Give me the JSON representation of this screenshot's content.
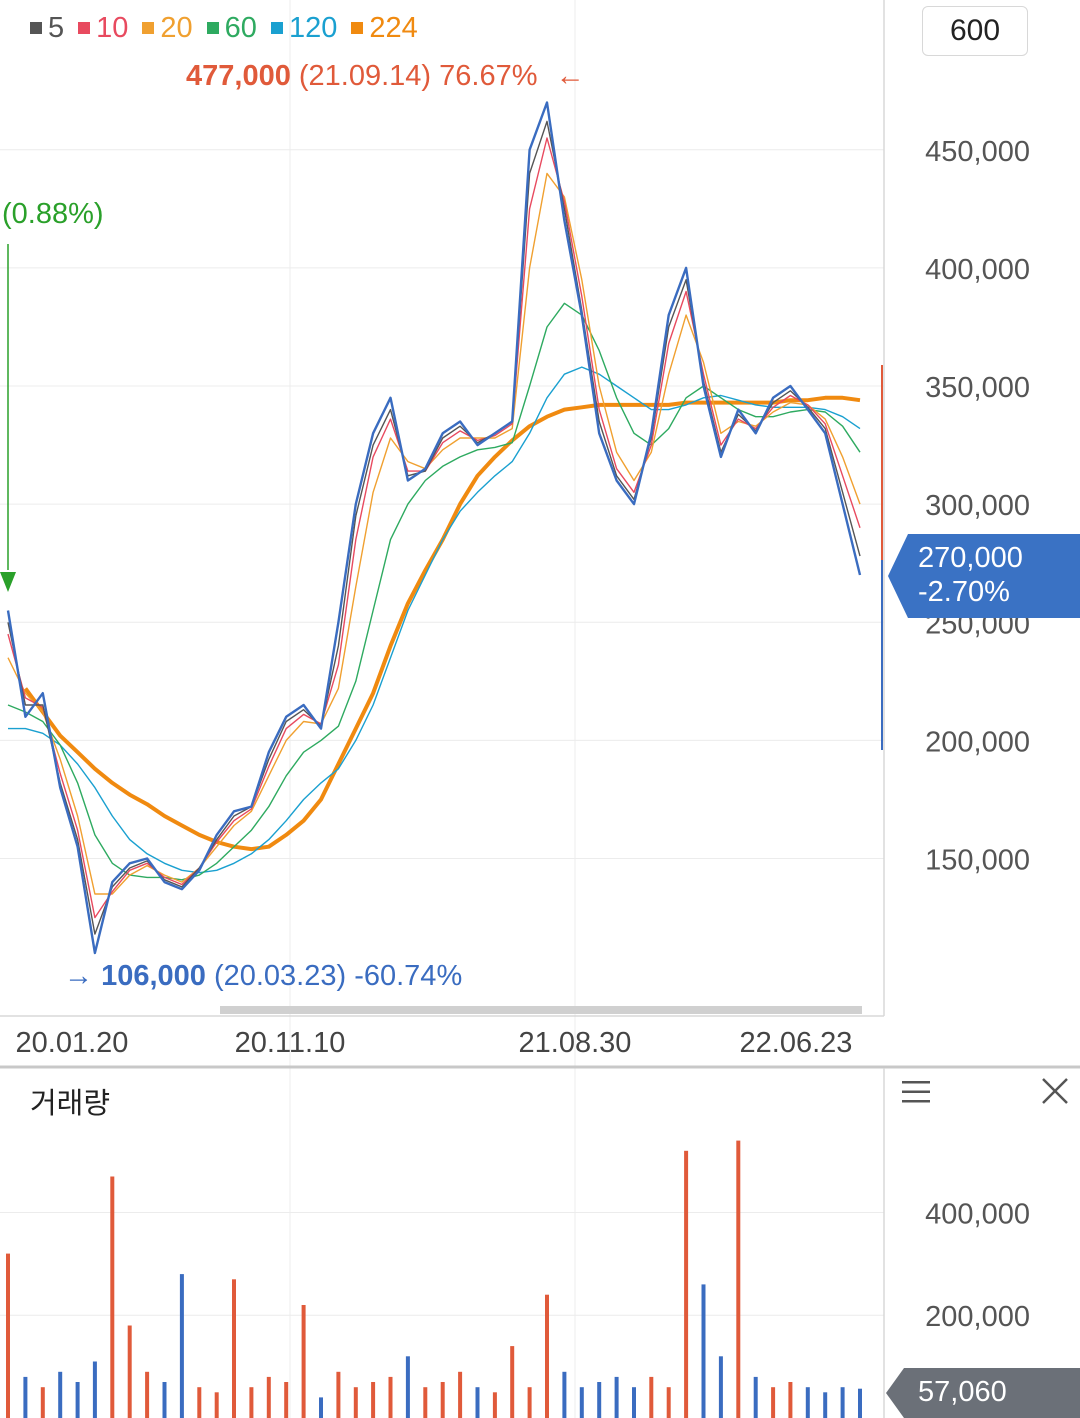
{
  "legend": [
    {
      "label": "5",
      "color": "#555555"
    },
    {
      "label": "10",
      "color": "#e84a5f"
    },
    {
      "label": "20",
      "color": "#f0a030"
    },
    {
      "label": "60",
      "color": "#2eaa60"
    },
    {
      "label": "120",
      "color": "#1aa0d0"
    },
    {
      "label": "224",
      "color": "#f08a10"
    }
  ],
  "zoom_value": "600",
  "annotations": {
    "high": {
      "value": "477,000",
      "detail": "(21.09.14) 76.67%",
      "arrow": "←"
    },
    "low": {
      "arrow": "→",
      "value": "106,000",
      "detail": "(20.03.23) -60.74%"
    },
    "start": {
      "text": "(0.88%)"
    }
  },
  "current_price": {
    "value": "270,000",
    "change": "-2.70%"
  },
  "volume_panel": {
    "title": "거래량",
    "current": "57,060"
  },
  "chart_data": {
    "type": "line",
    "price_axis": {
      "ticks": [
        150000,
        200000,
        250000,
        300000,
        350000,
        400000,
        450000
      ],
      "tick_labels": [
        "150,000",
        "200,000",
        "250,000",
        "300,000",
        "350,000",
        "400,000",
        "450,000"
      ],
      "ylim": [
        88000,
        488000
      ]
    },
    "x_tick_labels": [
      "20.01.20",
      "20.11.10",
      "21.08.30",
      "22.06.23"
    ],
    "price_series": [
      {
        "name": "price",
        "values": [
          255000,
          210000,
          220000,
          180000,
          155000,
          110000,
          140000,
          148000,
          150000,
          140000,
          137000,
          145000,
          160000,
          170000,
          172000,
          195000,
          210000,
          215000,
          205000,
          250000,
          300000,
          330000,
          345000,
          310000,
          315000,
          330000,
          335000,
          325000,
          330000,
          335000,
          450000,
          470000,
          420000,
          380000,
          330000,
          310000,
          300000,
          330000,
          380000,
          400000,
          350000,
          320000,
          340000,
          330000,
          345000,
          350000,
          340000,
          330000,
          300000,
          270000
        ]
      },
      {
        "name": "5",
        "values": [
          250000,
          215000,
          215000,
          182000,
          158000,
          118000,
          138000,
          146000,
          149000,
          141000,
          138000,
          146000,
          158000,
          168000,
          172000,
          192000,
          208000,
          213000,
          206000,
          240000,
          295000,
          325000,
          340000,
          312000,
          314000,
          328000,
          333000,
          326000,
          330000,
          335000,
          440000,
          462000,
          425000,
          382000,
          335000,
          312000,
          302000,
          328000,
          375000,
          395000,
          352000,
          322000,
          338000,
          331000,
          343000,
          348000,
          341000,
          332000,
          305000,
          278000
        ]
      },
      {
        "name": "10",
        "values": [
          245000,
          218000,
          214000,
          186000,
          162000,
          125000,
          136000,
          145000,
          148000,
          142000,
          139000,
          146000,
          157000,
          166000,
          171000,
          189000,
          205000,
          211000,
          207000,
          232000,
          285000,
          320000,
          336000,
          314000,
          314000,
          326000,
          331000,
          327000,
          329000,
          334000,
          425000,
          455000,
          428000,
          388000,
          340000,
          315000,
          305000,
          325000,
          368000,
          390000,
          355000,
          325000,
          336000,
          332000,
          341000,
          346000,
          342000,
          334000,
          312000,
          290000
        ]
      },
      {
        "name": "20",
        "values": [
          235000,
          220000,
          212000,
          192000,
          168000,
          135000,
          135000,
          143000,
          147000,
          143000,
          140000,
          146000,
          155000,
          164000,
          170000,
          185000,
          200000,
          208000,
          207000,
          222000,
          265000,
          305000,
          328000,
          318000,
          315000,
          323000,
          328000,
          328000,
          328000,
          332000,
          400000,
          440000,
          430000,
          395000,
          350000,
          322000,
          310000,
          322000,
          355000,
          380000,
          360000,
          330000,
          335000,
          333000,
          339000,
          343000,
          342000,
          336000,
          320000,
          300000
        ]
      },
      {
        "name": "60",
        "values": [
          215000,
          212000,
          208000,
          198000,
          182000,
          160000,
          148000,
          143000,
          142000,
          142000,
          141000,
          143000,
          148000,
          155000,
          162000,
          172000,
          185000,
          195000,
          200000,
          206000,
          225000,
          255000,
          285000,
          300000,
          310000,
          316000,
          320000,
          323000,
          324000,
          326000,
          350000,
          375000,
          385000,
          380000,
          365000,
          345000,
          330000,
          325000,
          332000,
          345000,
          350000,
          345000,
          340000,
          337000,
          337000,
          339000,
          340000,
          339000,
          333000,
          322000
        ]
      },
      {
        "name": "120",
        "values": [
          205000,
          205000,
          203000,
          198000,
          190000,
          180000,
          168000,
          158000,
          152000,
          148000,
          145000,
          144000,
          145000,
          148000,
          152000,
          158000,
          166000,
          175000,
          182000,
          188000,
          200000,
          215000,
          235000,
          255000,
          270000,
          285000,
          297000,
          305000,
          312000,
          318000,
          330000,
          345000,
          355000,
          358000,
          355000,
          350000,
          345000,
          340000,
          340000,
          342000,
          345000,
          346000,
          344000,
          342000,
          341000,
          341000,
          341000,
          340000,
          337000,
          332000
        ]
      },
      {
        "name": "224",
        "values": [
          null,
          222000,
          212000,
          202000,
          195000,
          188000,
          182000,
          177000,
          173000,
          168000,
          164000,
          160000,
          157000,
          155000,
          154000,
          155000,
          160000,
          166000,
          175000,
          190000,
          205000,
          220000,
          240000,
          258000,
          272000,
          285000,
          300000,
          312000,
          320000,
          327000,
          333000,
          337000,
          340000,
          341000,
          342000,
          342000,
          342000,
          342000,
          342000,
          343000,
          343000,
          343000,
          343000,
          343000,
          343000,
          344000,
          344000,
          345000,
          345000,
          344000
        ]
      }
    ],
    "volume_axis": {
      "ticks": [
        200000,
        400000
      ],
      "tick_labels": [
        "200,000",
        "400,000"
      ],
      "ylim": [
        0,
        580000
      ]
    },
    "volume": [
      320000,
      80000,
      60000,
      90000,
      70000,
      110000,
      470000,
      180000,
      90000,
      70000,
      280000,
      60000,
      50000,
      270000,
      60000,
      80000,
      70000,
      220000,
      40000,
      90000,
      60000,
      70000,
      80000,
      120000,
      60000,
      70000,
      90000,
      60000,
      50000,
      140000,
      60000,
      240000,
      90000,
      60000,
      70000,
      80000,
      60000,
      80000,
      60000,
      520000,
      260000,
      120000,
      540000,
      80000,
      60000,
      70000,
      60000,
      50000,
      60000,
      57060
    ]
  }
}
